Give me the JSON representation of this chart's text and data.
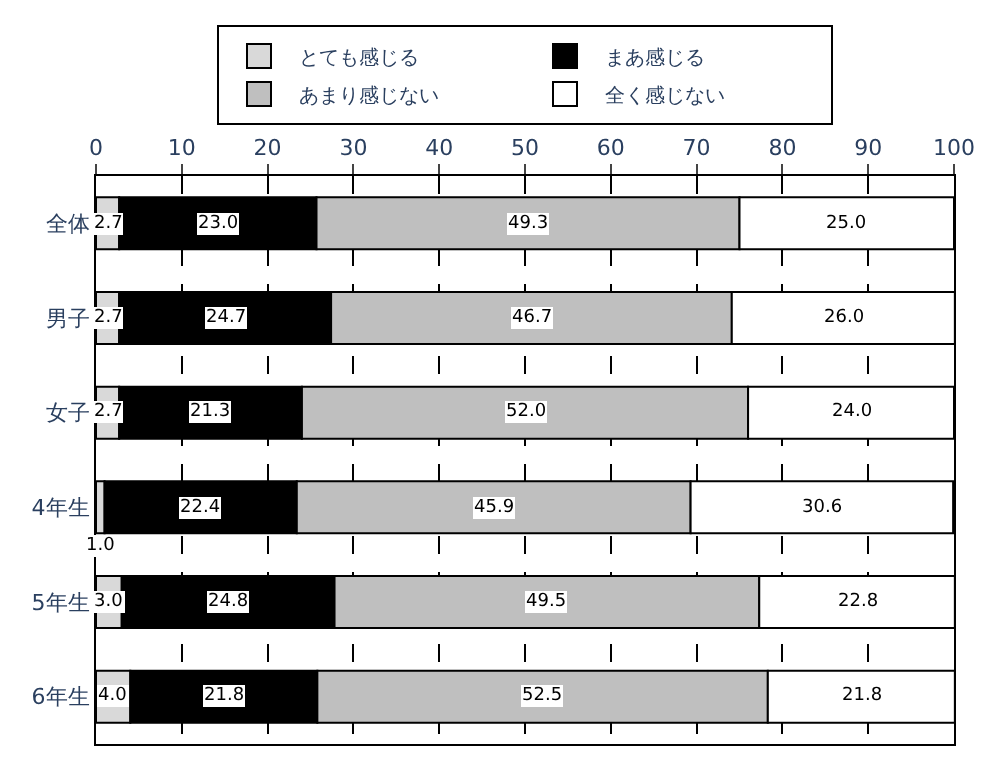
{
  "chart_data": {
    "type": "bar",
    "orientation": "horizontal",
    "stacked": true,
    "categories": [
      "全体",
      "男子",
      "女子",
      "4年生",
      "5年生",
      "6年生"
    ],
    "series": [
      {
        "name": "とても感じる",
        "color": "#d9d9d9",
        "values": [
          2.7,
          2.7,
          2.7,
          1.0,
          3.0,
          4.0
        ],
        "value_labels": [
          "2.7",
          "2.7",
          "2.7",
          "1.0",
          "3.0",
          "4.0"
        ]
      },
      {
        "name": "まあ感じる",
        "color": "#000000",
        "values": [
          23.0,
          24.7,
          21.3,
          22.4,
          24.8,
          21.8
        ],
        "value_labels": [
          "23.0",
          "24.7",
          "21.3",
          "22.4",
          "24.8",
          "21.8"
        ]
      },
      {
        "name": "あまり感じない",
        "color": "#bfbfbf",
        "values": [
          49.3,
          46.7,
          52.0,
          45.9,
          49.5,
          52.5
        ],
        "value_labels": [
          "49.3",
          "46.7",
          "52.0",
          "45.9",
          "49.5",
          "52.5"
        ]
      },
      {
        "name": "全く感じない",
        "color": "#ffffff",
        "values": [
          25.0,
          26.0,
          24.0,
          30.6,
          22.8,
          21.8
        ],
        "value_labels": [
          "25.0",
          "26.0",
          "24.0",
          "30.6",
          "22.8",
          "21.8"
        ]
      }
    ],
    "xlim": [
      0,
      100
    ],
    "xticks": [
      0,
      10,
      20,
      30,
      40,
      50,
      60,
      70,
      80,
      90,
      100
    ],
    "grid": "x",
    "legend": "top"
  }
}
